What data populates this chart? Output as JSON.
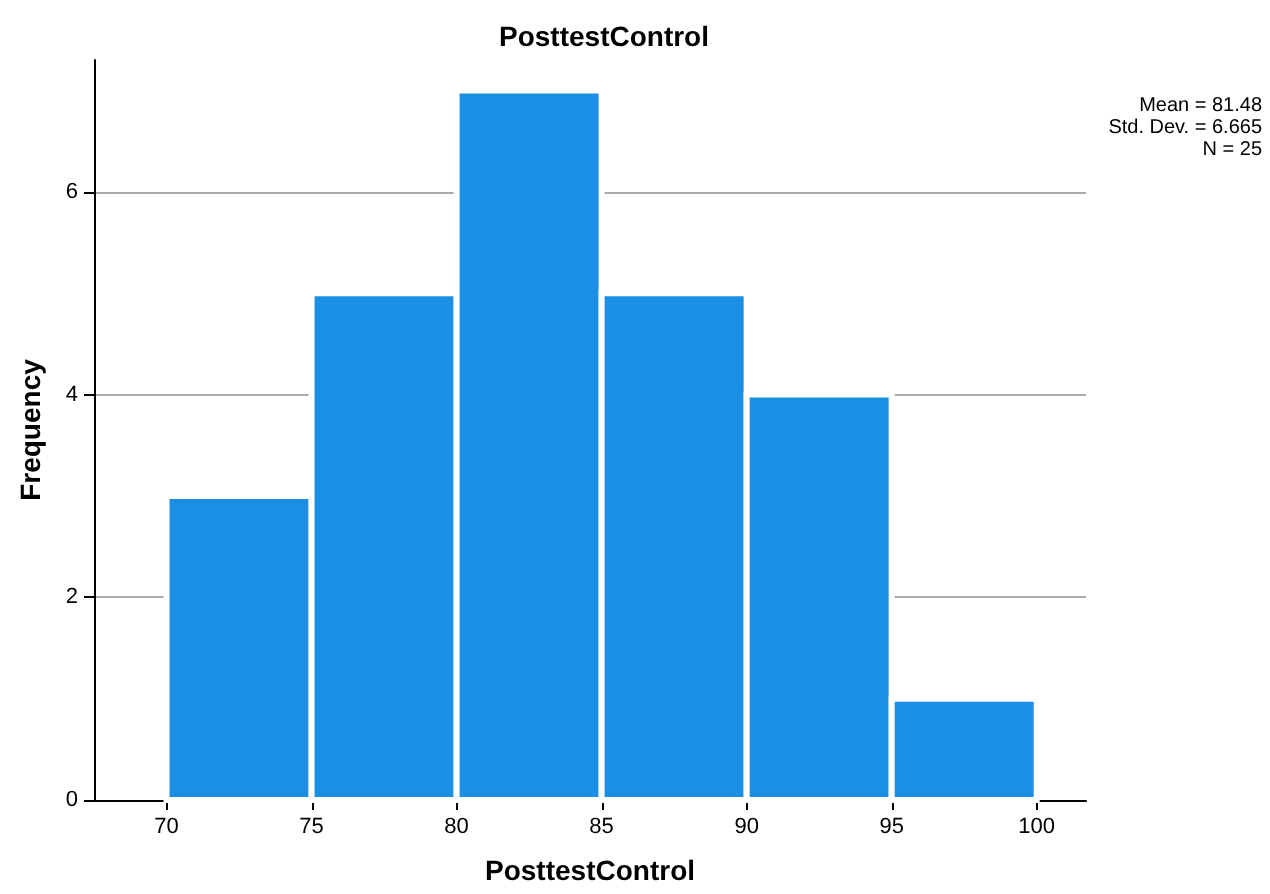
{
  "chart_data": {
    "type": "histogram",
    "title": "PosttestControl",
    "xlabel": "PosttestControl",
    "ylabel": "Frequency",
    "bins": [
      70,
      75,
      80,
      85,
      90,
      95,
      100
    ],
    "values": [
      3,
      5,
      7,
      5,
      4,
      1
    ],
    "color": "#1a8fe3",
    "xlim": [
      67.5,
      101.7
    ],
    "xticks": [
      70,
      75,
      80,
      85,
      90,
      95,
      100
    ],
    "ylim": [
      0,
      7.3
    ],
    "yticks": [
      0,
      2,
      4,
      6
    ],
    "grid": "y",
    "annotations": [
      "Mean = 81.48",
      "Std. Dev. = 6.665",
      "N = 25"
    ]
  }
}
